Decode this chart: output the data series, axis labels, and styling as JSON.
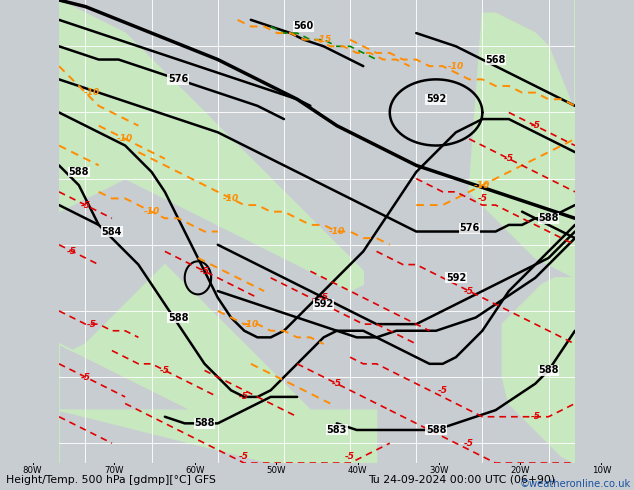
{
  "title_left": "Height/Temp. 500 hPa [gdmp][°C] GFS",
  "title_right": "Tu 24-09-2024 00:00 UTC (06+90)",
  "credit": "©weatheronline.co.uk",
  "bg_color": "#c8cdd2",
  "land_color": "#c8e8c0",
  "ocean_color": "#c8cdd2",
  "grid_color": "#ffffff",
  "credit_color": "#1a52a0",
  "lon_labels": [
    "80W",
    "70W",
    "60W",
    "50W",
    "40W",
    "30W",
    "20W",
    "10W"
  ],
  "lon_vals": [
    -80,
    -70,
    -60,
    -50,
    -40,
    -30,
    -20,
    -10
  ],
  "lon_min": -84,
  "lon_max": -6,
  "lat_min": 7,
  "lat_max": 77,
  "grid_lons": [
    -80,
    -70,
    -60,
    -50,
    -40,
    -30,
    -20,
    -10
  ],
  "grid_lats": [
    10,
    20,
    30,
    40,
    50,
    60,
    70
  ]
}
